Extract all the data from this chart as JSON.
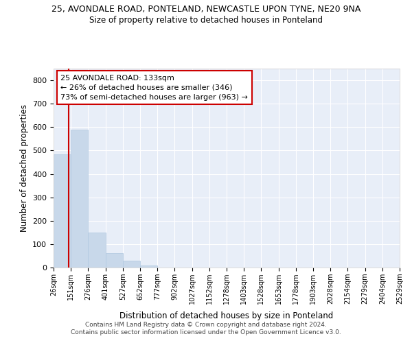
{
  "title1": "25, AVONDALE ROAD, PONTELAND, NEWCASTLE UPON TYNE, NE20 9NA",
  "title2": "Size of property relative to detached houses in Ponteland",
  "xlabel": "Distribution of detached houses by size in Ponteland",
  "ylabel": "Number of detached properties",
  "bar_color": "#c8d8ea",
  "bar_edge_color": "#b0c8e0",
  "property_line_color": "#cc0000",
  "property_value": 133,
  "annotation_line1": "25 AVONDALE ROAD: 133sqm",
  "annotation_line2": "← 26% of detached houses are smaller (346)",
  "annotation_line3": "73% of semi-detached houses are larger (963) →",
  "annotation_box_color": "#ffffff",
  "annotation_border_color": "#cc0000",
  "bin_edges": [
    26,
    151,
    276,
    401,
    527,
    652,
    777,
    902,
    1027,
    1152,
    1278,
    1403,
    1528,
    1653,
    1778,
    1903,
    2028,
    2154,
    2279,
    2404,
    2529
  ],
  "bin_heights": [
    485,
    590,
    150,
    62,
    30,
    10,
    0,
    0,
    0,
    0,
    0,
    0,
    0,
    0,
    0,
    0,
    0,
    0,
    0,
    0
  ],
  "ylim": [
    0,
    850
  ],
  "yticks": [
    0,
    100,
    200,
    300,
    400,
    500,
    600,
    700,
    800
  ],
  "footer1": "Contains HM Land Registry data © Crown copyright and database right 2024.",
  "footer2": "Contains public sector information licensed under the Open Government Licence v3.0.",
  "axes_background": "#e8eef8",
  "grid_color": "#ffffff",
  "fig_background": "#ffffff"
}
